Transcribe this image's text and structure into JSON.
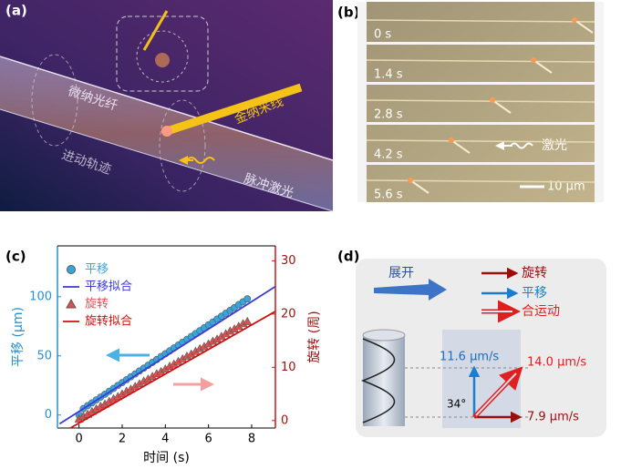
{
  "panel_a": {
    "label": "(a)",
    "fiber": "微纳光纤",
    "trajectory": "进动轨迹",
    "nanowire": "金纳米线",
    "laser": "脉冲激光"
  },
  "panel_b": {
    "label": "(b)",
    "times": [
      "0 s",
      "1.4 s",
      "2.8 s",
      "4.2 s",
      "5.6 s"
    ],
    "laser": "激光",
    "scale": "10 μm"
  },
  "chart_data": {
    "type": "scatter",
    "label": "(c)",
    "xlabel": "时间 (s)",
    "ylabel": "平移 (μm)",
    "y2label": "旋转 (周)",
    "xlim": [
      -1,
      9.1
    ],
    "xticks": [
      0,
      2,
      4,
      6,
      8
    ],
    "ylim": [
      -11,
      143
    ],
    "yticks": [
      0,
      50,
      100
    ],
    "y2lim": [
      -1.4,
      32.8
    ],
    "y2ticks": [
      0,
      10,
      20,
      30
    ],
    "series": [
      {
        "name": "平移",
        "color": "#38a6dc",
        "kind": "marker",
        "marker": "circle",
        "x": [
          0,
          0.2,
          0.4,
          0.6,
          0.8,
          1,
          1.2,
          1.4,
          1.6,
          1.8,
          2,
          2.2,
          2.4,
          2.6,
          2.8,
          3,
          3.2,
          3.4,
          3.6,
          3.8,
          4,
          4.2,
          4.4,
          4.6,
          4.8,
          5,
          5.2,
          5.4,
          5.6,
          5.8,
          6,
          6.2,
          6.4,
          6.6,
          6.8,
          7,
          7.2,
          7.4,
          7.6,
          7.8
        ],
        "values": [
          0,
          5.4,
          7.9,
          10.3,
          12.8,
          15.2,
          17.6,
          20.1,
          22.5,
          25,
          27.4,
          29.8,
          32.3,
          34.7,
          37.2,
          39.6,
          42,
          44.5,
          46.9,
          49.4,
          51.8,
          54.2,
          56.7,
          59.1,
          61.6,
          64,
          66.4,
          68.9,
          71.3,
          73.8,
          76.2,
          78.6,
          81.1,
          83.5,
          86,
          88.4,
          90.8,
          93.3,
          95.7,
          98.2
        ]
      },
      {
        "name": "平移拟合",
        "color": "#3b3bd6",
        "kind": "line",
        "x": [
          -0.9,
          9.1
        ],
        "values": [
          -7.4,
          108.6
        ]
      },
      {
        "name": "旋转",
        "color": "#e05050",
        "kind": "marker",
        "marker": "triangle",
        "axis": "y2",
        "x": [
          0,
          0.2,
          0.4,
          0.6,
          0.8,
          1,
          1.2,
          1.4,
          1.6,
          1.8,
          2,
          2.2,
          2.4,
          2.6,
          2.8,
          3,
          3.2,
          3.4,
          3.6,
          3.8,
          4,
          4.2,
          4.4,
          4.6,
          4.8,
          5,
          5.2,
          5.4,
          5.6,
          5.8,
          6,
          6.2,
          6.4,
          6.6,
          6.8,
          7,
          7.2,
          7.4,
          7.6,
          7.8
        ],
        "values": [
          0.3,
          0.8,
          1.2,
          1.7,
          2.2,
          2.7,
          3.1,
          3.6,
          4.1,
          4.5,
          5,
          5.5,
          5.9,
          6.4,
          6.9,
          7.4,
          7.8,
          8.3,
          8.8,
          9.2,
          9.7,
          10.2,
          10.6,
          11.1,
          11.6,
          12.1,
          12.5,
          13,
          13.5,
          13.9,
          14.4,
          14.9,
          15.3,
          15.8,
          16.3,
          16.8,
          17.2,
          17.7,
          18.2,
          18.6
        ]
      },
      {
        "name": "旋转拟合",
        "color": "#d01010",
        "kind": "line",
        "axis": "y2",
        "x": [
          -0.4,
          9.1
        ],
        "values": [
          -1.4,
          20.5
        ]
      }
    ]
  },
  "panel_d": {
    "label": "(d)",
    "unfold": "展开",
    "rotation": "旋转",
    "translation": "平移",
    "combined": "合运动",
    "v_trans": "11.6 μm/s",
    "v_comb": "14.0 μm/s",
    "v_rot": "7.9 μm/s",
    "angle": "34°"
  }
}
